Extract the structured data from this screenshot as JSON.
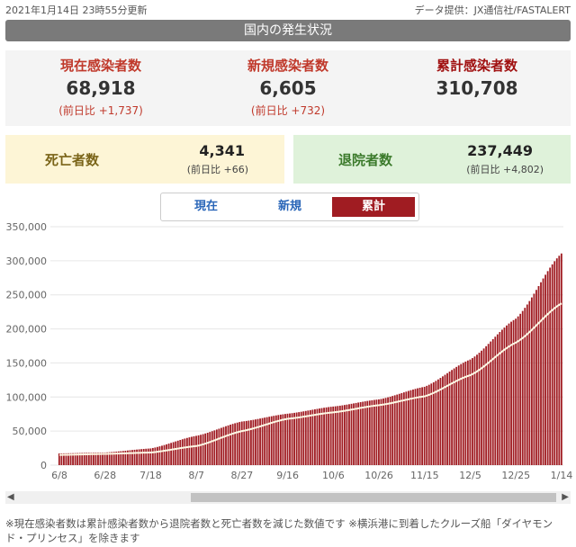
{
  "header": {
    "updated": "2021年1月14日 23時55分更新",
    "source": "データ提供：JX通信社/FASTALERT",
    "banner": "国内の発生状況"
  },
  "stats": {
    "current": {
      "label": "現在感染者数",
      "value": "68,918",
      "change": "(前日比 +1,737)"
    },
    "new": {
      "label": "新規感染者数",
      "value": "6,605",
      "change": "(前日比 +732)"
    },
    "total": {
      "label": "累計感染者数",
      "value": "310,708"
    },
    "deaths": {
      "label": "死亡者数",
      "value": "4,341",
      "change": "(前日比 +66)"
    },
    "recovered": {
      "label": "退院者数",
      "value": "237,449",
      "change": "(前日比 +4,802)"
    }
  },
  "tabs": [
    "現在",
    "新規",
    "累計"
  ],
  "active_tab": "累計",
  "colors": {
    "bar": "#a01c22",
    "line": "#fffbe6",
    "banner": "#7a7a7a"
  },
  "chart_data": {
    "type": "bar",
    "x_ticks": [
      "6/8",
      "6/28",
      "7/18",
      "8/7",
      "8/27",
      "9/16",
      "10/6",
      "10/26",
      "11/15",
      "12/5",
      "12/25",
      "1/14"
    ],
    "ylim": [
      0,
      350000
    ],
    "y_ticks": [
      "0",
      "50,000",
      "100,000",
      "150,000",
      "200,000",
      "250,000",
      "300,000",
      "350,000"
    ],
    "grid": true,
    "series": [
      {
        "type": "bar",
        "anchors": [
          {
            "date": "2020-06-08",
            "value": 17200
          },
          {
            "date": "2020-06-28",
            "value": 18500
          },
          {
            "date": "2020-07-18",
            "value": 24500
          },
          {
            "date": "2020-08-07",
            "value": 43000
          },
          {
            "date": "2020-08-27",
            "value": 64000
          },
          {
            "date": "2020-09-16",
            "value": 75500
          },
          {
            "date": "2020-10-06",
            "value": 86000
          },
          {
            "date": "2020-10-26",
            "value": 96500
          },
          {
            "date": "2020-11-15",
            "value": 115000
          },
          {
            "date": "2020-12-05",
            "value": 155000
          },
          {
            "date": "2020-12-25",
            "value": 215000
          },
          {
            "date": "2021-01-14",
            "value": 310708
          }
        ]
      },
      {
        "type": "line",
        "anchors": [
          {
            "date": "2020-06-08",
            "value": 15000
          },
          {
            "date": "2020-06-28",
            "value": 16500
          },
          {
            "date": "2020-07-18",
            "value": 18500
          },
          {
            "date": "2020-08-07",
            "value": 28000
          },
          {
            "date": "2020-08-27",
            "value": 50000
          },
          {
            "date": "2020-09-16",
            "value": 68000
          },
          {
            "date": "2020-10-06",
            "value": 77500
          },
          {
            "date": "2020-10-26",
            "value": 88000
          },
          {
            "date": "2020-11-15",
            "value": 101000
          },
          {
            "date": "2020-12-05",
            "value": 132000
          },
          {
            "date": "2020-12-25",
            "value": 180000
          },
          {
            "date": "2021-01-14",
            "value": 237449
          }
        ]
      }
    ]
  },
  "note": "※現在感染者数は累計感染者数から退院者数と死亡者数を減じた数値です ※横浜港に到着したクルーズ船「ダイヤモンド・プリンセス」を除きます"
}
